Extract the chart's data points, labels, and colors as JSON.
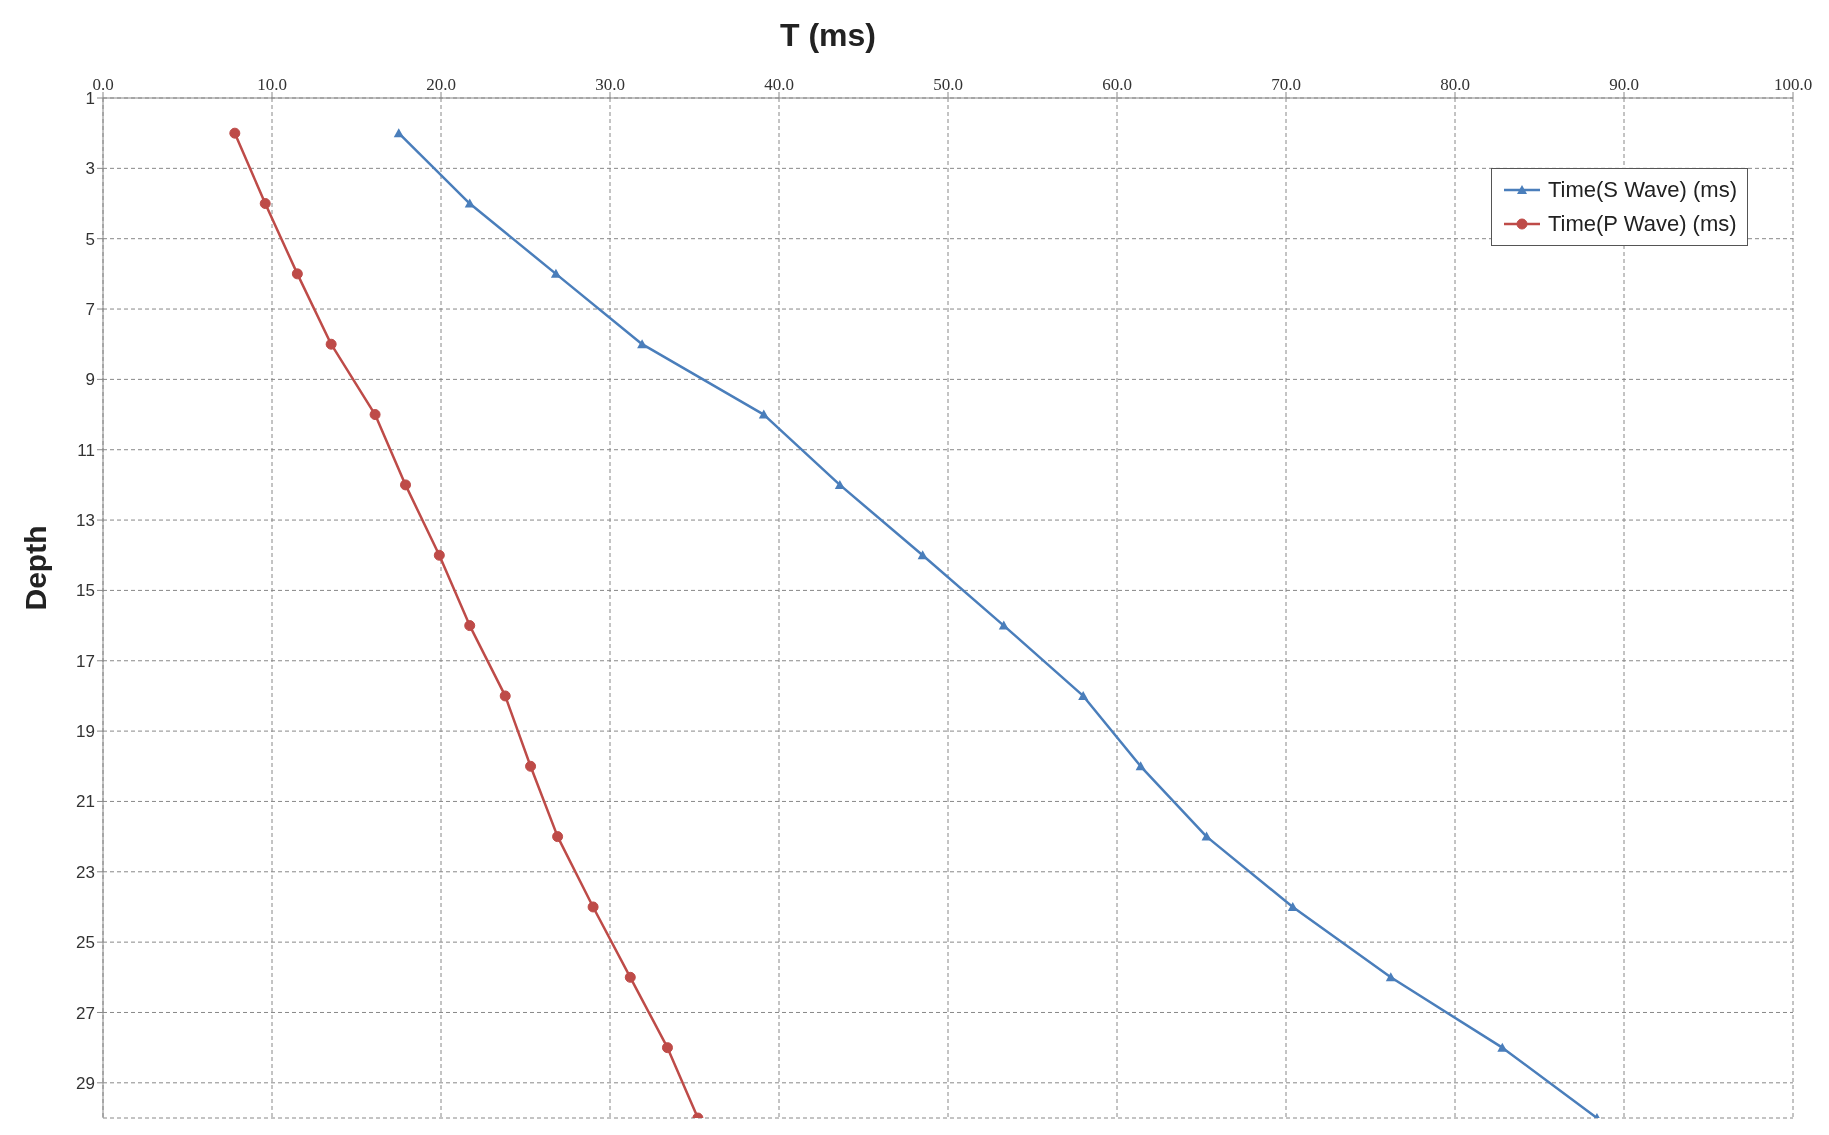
{
  "chart_data": {
    "type": "line",
    "xlabel": "T (ms)",
    "ylabel": "Depth",
    "xlim": [
      0,
      100
    ],
    "xticks": [
      {
        "value": 0,
        "label": "0.0"
      },
      {
        "value": 10,
        "label": "10.0"
      },
      {
        "value": 20,
        "label": "20.0"
      },
      {
        "value": 30,
        "label": "30.0"
      },
      {
        "value": 40,
        "label": "40.0"
      },
      {
        "value": 50,
        "label": "50.0"
      },
      {
        "value": 60,
        "label": "60.0"
      },
      {
        "value": 70,
        "label": "70.0"
      },
      {
        "value": 80,
        "label": "80.0"
      },
      {
        "value": 90,
        "label": "90.0"
      },
      {
        "value": 100,
        "label": "100.0"
      }
    ],
    "ylim": [
      30,
      1
    ],
    "yticks": [
      1,
      3,
      5,
      7,
      9,
      11,
      13,
      15,
      17,
      19,
      21,
      23,
      25,
      27,
      29
    ],
    "grid": true,
    "legend": "top right",
    "line_style": "solid",
    "series": [
      {
        "name": "Time(S Wave) (ms)",
        "color": "#4a7ebb",
        "marker": "triangle",
        "x": [
          17.5,
          21.7,
          26.8,
          31.9,
          39.1,
          43.6,
          48.5,
          53.3,
          58.0,
          61.4,
          65.3,
          70.4,
          76.2,
          82.8,
          88.4
        ],
        "values": [
          2,
          4,
          6,
          8,
          10,
          12,
          14,
          16,
          18,
          20,
          22,
          24,
          26,
          28,
          30
        ]
      },
      {
        "name": "Time(P Wave) (ms)",
        "color": "#be4b48",
        "marker": "circle",
        "x": [
          7.8,
          9.6,
          11.5,
          13.5,
          16.1,
          17.9,
          19.9,
          21.7,
          23.8,
          25.3,
          26.9,
          29.0,
          31.2,
          33.4,
          35.2
        ],
        "values": [
          2,
          4,
          6,
          8,
          10,
          12,
          14,
          16,
          18,
          20,
          22,
          24,
          26,
          28,
          30
        ]
      }
    ]
  }
}
